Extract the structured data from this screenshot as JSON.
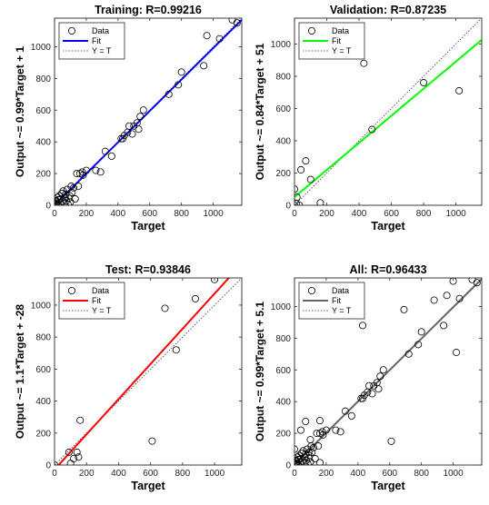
{
  "chart_data": [
    {
      "type": "scatter",
      "title": "Training: R=0.99216",
      "xlabel": "Target",
      "ylabel": "Output ~= 0.99*Target + 1",
      "xlim": [
        0,
        1180
      ],
      "ylim": [
        0,
        1180
      ],
      "xticks": [
        "0",
        "200",
        "400",
        "600",
        "800",
        "1000"
      ],
      "yticks": [
        "0",
        "200",
        "400",
        "600",
        "800",
        "1000"
      ],
      "fit_color": "#0000ff",
      "fit": {
        "slope": 0.99,
        "intercept": 1
      },
      "legend": {
        "position": "top-left",
        "entries": [
          "Data",
          "Fit",
          "Y = T"
        ]
      },
      "points": [
        [
          0,
          0
        ],
        [
          5,
          10
        ],
        [
          8,
          30
        ],
        [
          12,
          5
        ],
        [
          15,
          20
        ],
        [
          20,
          50
        ],
        [
          22,
          8
        ],
        [
          25,
          35
        ],
        [
          30,
          60
        ],
        [
          35,
          15
        ],
        [
          40,
          40
        ],
        [
          45,
          75
        ],
        [
          50,
          25
        ],
        [
          55,
          90
        ],
        [
          60,
          10
        ],
        [
          65,
          50
        ],
        [
          70,
          70
        ],
        [
          75,
          30
        ],
        [
          80,
          100
        ],
        [
          85,
          5
        ],
        [
          90,
          45
        ],
        [
          95,
          60
        ],
        [
          100,
          20
        ],
        [
          105,
          120
        ],
        [
          110,
          80
        ],
        [
          120,
          110
        ],
        [
          130,
          40
        ],
        [
          140,
          200
        ],
        [
          150,
          120
        ],
        [
          160,
          200
        ],
        [
          175,
          210
        ],
        [
          180,
          190
        ],
        [
          200,
          220
        ],
        [
          260,
          220
        ],
        [
          290,
          210
        ],
        [
          320,
          340
        ],
        [
          360,
          310
        ],
        [
          420,
          420
        ],
        [
          440,
          440
        ],
        [
          430,
          420
        ],
        [
          460,
          460
        ],
        [
          470,
          500
        ],
        [
          490,
          450
        ],
        [
          500,
          500
        ],
        [
          520,
          520
        ],
        [
          530,
          480
        ],
        [
          540,
          560
        ],
        [
          560,
          600
        ],
        [
          720,
          700
        ],
        [
          780,
          760
        ],
        [
          800,
          840
        ],
        [
          940,
          880
        ],
        [
          960,
          1070
        ],
        [
          1040,
          1050
        ],
        [
          1120,
          1170
        ],
        [
          1150,
          1150
        ]
      ]
    },
    {
      "type": "scatter",
      "title": "Validation: R=0.87235",
      "xlabel": "Target",
      "ylabel": "Output ~= 0.84*Target + 51",
      "xlim": [
        0,
        1160
      ],
      "ylim": [
        0,
        1160
      ],
      "xticks": [
        "0",
        "200",
        "400",
        "600",
        "800",
        "1000"
      ],
      "yticks": [
        "0",
        "200",
        "400",
        "600",
        "800",
        "1000"
      ],
      "fit_color": "#00ff00",
      "fit": {
        "slope": 0.84,
        "intercept": 51
      },
      "legend": {
        "position": "top-left",
        "entries": [
          "Data",
          "Fit",
          "Y = T"
        ]
      },
      "points": [
        [
          0,
          0
        ],
        [
          0,
          100
        ],
        [
          10,
          10
        ],
        [
          15,
          50
        ],
        [
          30,
          0
        ],
        [
          40,
          220
        ],
        [
          70,
          275
        ],
        [
          100,
          160
        ],
        [
          160,
          15
        ],
        [
          480,
          470
        ],
        [
          800,
          760
        ],
        [
          1020,
          710
        ],
        [
          430,
          880
        ]
      ]
    },
    {
      "type": "scatter",
      "title": "Test: R=0.93846",
      "xlabel": "Target",
      "ylabel": "Output ~= 1.1*Target + -28",
      "xlim": [
        0,
        1170
      ],
      "ylim": [
        0,
        1170
      ],
      "xticks": [
        "0",
        "200",
        "400",
        "600",
        "800",
        "1000"
      ],
      "yticks": [
        "0",
        "200",
        "400",
        "600",
        "800",
        "1000"
      ],
      "fit_color": "#ff0000",
      "fit": {
        "slope": 1.1,
        "intercept": -28
      },
      "legend": {
        "position": "top-left",
        "entries": [
          "Data",
          "Fit",
          "Y = T"
        ]
      },
      "points": [
        [
          0,
          0
        ],
        [
          90,
          80
        ],
        [
          100,
          10
        ],
        [
          120,
          40
        ],
        [
          140,
          80
        ],
        [
          150,
          50
        ],
        [
          160,
          280
        ],
        [
          610,
          150
        ],
        [
          690,
          980
        ],
        [
          760,
          720
        ],
        [
          880,
          1040
        ],
        [
          1000,
          1160
        ]
      ]
    },
    {
      "type": "scatter",
      "title": "All: R=0.96433",
      "xlabel": "Target",
      "ylabel": "Output ~= 0.99*Target + 5.1",
      "xlim": [
        0,
        1180
      ],
      "ylim": [
        0,
        1180
      ],
      "xticks": [
        "0",
        "200",
        "400",
        "600",
        "800",
        "1000"
      ],
      "yticks": [
        "0",
        "200",
        "400",
        "600",
        "800",
        "1000"
      ],
      "fit_color": "#666666",
      "fit": {
        "slope": 0.99,
        "intercept": 5.1
      },
      "legend": {
        "position": "top-left",
        "entries": [
          "Data",
          "Fit",
          "Y = T"
        ]
      },
      "points": [
        [
          0,
          0
        ],
        [
          5,
          10
        ],
        [
          8,
          30
        ],
        [
          12,
          5
        ],
        [
          15,
          20
        ],
        [
          20,
          50
        ],
        [
          22,
          8
        ],
        [
          25,
          35
        ],
        [
          30,
          60
        ],
        [
          35,
          15
        ],
        [
          40,
          40
        ],
        [
          45,
          75
        ],
        [
          50,
          25
        ],
        [
          55,
          90
        ],
        [
          60,
          10
        ],
        [
          65,
          50
        ],
        [
          70,
          70
        ],
        [
          75,
          30
        ],
        [
          80,
          100
        ],
        [
          85,
          5
        ],
        [
          90,
          45
        ],
        [
          95,
          60
        ],
        [
          100,
          20
        ],
        [
          105,
          120
        ],
        [
          110,
          80
        ],
        [
          120,
          110
        ],
        [
          130,
          40
        ],
        [
          140,
          200
        ],
        [
          150,
          120
        ],
        [
          160,
          200
        ],
        [
          175,
          210
        ],
        [
          180,
          190
        ],
        [
          200,
          220
        ],
        [
          260,
          220
        ],
        [
          290,
          210
        ],
        [
          320,
          340
        ],
        [
          360,
          310
        ],
        [
          420,
          420
        ],
        [
          440,
          440
        ],
        [
          430,
          420
        ],
        [
          460,
          460
        ],
        [
          470,
          500
        ],
        [
          490,
          450
        ],
        [
          500,
          500
        ],
        [
          520,
          520
        ],
        [
          530,
          480
        ],
        [
          540,
          560
        ],
        [
          560,
          600
        ],
        [
          720,
          700
        ],
        [
          780,
          760
        ],
        [
          800,
          840
        ],
        [
          940,
          880
        ],
        [
          960,
          1070
        ],
        [
          1040,
          1050
        ],
        [
          1120,
          1170
        ],
        [
          1150,
          1150
        ],
        [
          0,
          100
        ],
        [
          40,
          220
        ],
        [
          70,
          275
        ],
        [
          100,
          160
        ],
        [
          160,
          15
        ],
        [
          430,
          880
        ],
        [
          1020,
          710
        ],
        [
          90,
          80
        ],
        [
          160,
          280
        ],
        [
          610,
          150
        ],
        [
          690,
          980
        ],
        [
          880,
          1040
        ],
        [
          1000,
          1160
        ]
      ]
    }
  ]
}
